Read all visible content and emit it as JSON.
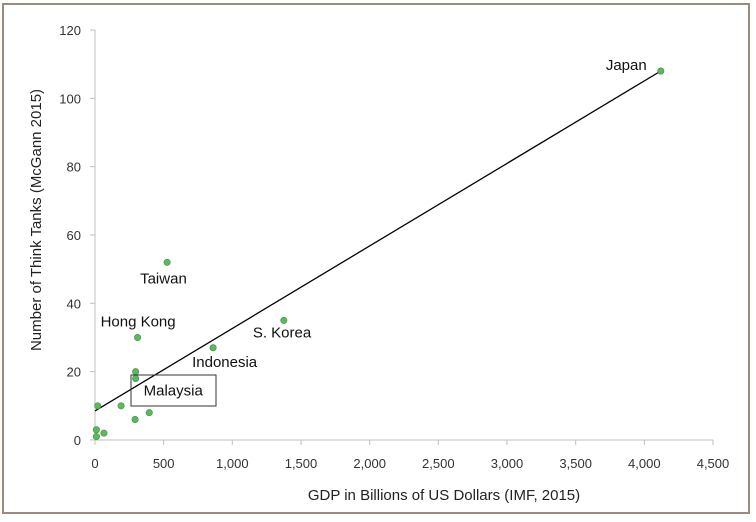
{
  "chart_data": {
    "type": "scatter",
    "title": "",
    "xlabel": "GDP in Billions of US Dollars (IMF, 2015)",
    "ylabel": "Number of Think Tanks (McGann 2015)",
    "xlim": [
      0,
      4500
    ],
    "ylim": [
      0,
      120
    ],
    "xticks": [
      0,
      500,
      1000,
      1500,
      2000,
      2500,
      3000,
      3500,
      4000,
      4500
    ],
    "xtick_labels": [
      "0",
      "500",
      "1,000",
      "1,500",
      "2,000",
      "2,500",
      "3,000",
      "3,500",
      "4,000",
      "4,500"
    ],
    "yticks": [
      0,
      20,
      40,
      60,
      80,
      100,
      120
    ],
    "ytick_labels": [
      "0",
      "20",
      "40",
      "60",
      "80",
      "100",
      "120"
    ],
    "grid": false,
    "point_color": "#5cb85c",
    "trendline": {
      "type": "linear",
      "x": [
        0,
        4120
      ],
      "y": [
        8.5,
        108
      ]
    },
    "points": [
      {
        "x": 4120,
        "y": 108,
        "label": "Japan"
      },
      {
        "x": 525,
        "y": 52,
        "label": "Taiwan"
      },
      {
        "x": 310,
        "y": 30,
        "label": "Hong Kong"
      },
      {
        "x": 1375,
        "y": 35,
        "label": "S. Korea"
      },
      {
        "x": 860,
        "y": 27,
        "label": "Indonesia"
      },
      {
        "x": 296,
        "y": 18,
        "label": "Malaysia",
        "boxed": true
      },
      {
        "x": 296,
        "y": 20,
        "label": ""
      },
      {
        "x": 20,
        "y": 10,
        "label": ""
      },
      {
        "x": 190,
        "y": 10,
        "label": ""
      },
      {
        "x": 395,
        "y": 8,
        "label": ""
      },
      {
        "x": 292,
        "y": 6,
        "label": ""
      },
      {
        "x": 10,
        "y": 3,
        "label": ""
      },
      {
        "x": 65,
        "y": 2,
        "label": ""
      },
      {
        "x": 10,
        "y": 1,
        "label": ""
      }
    ]
  }
}
